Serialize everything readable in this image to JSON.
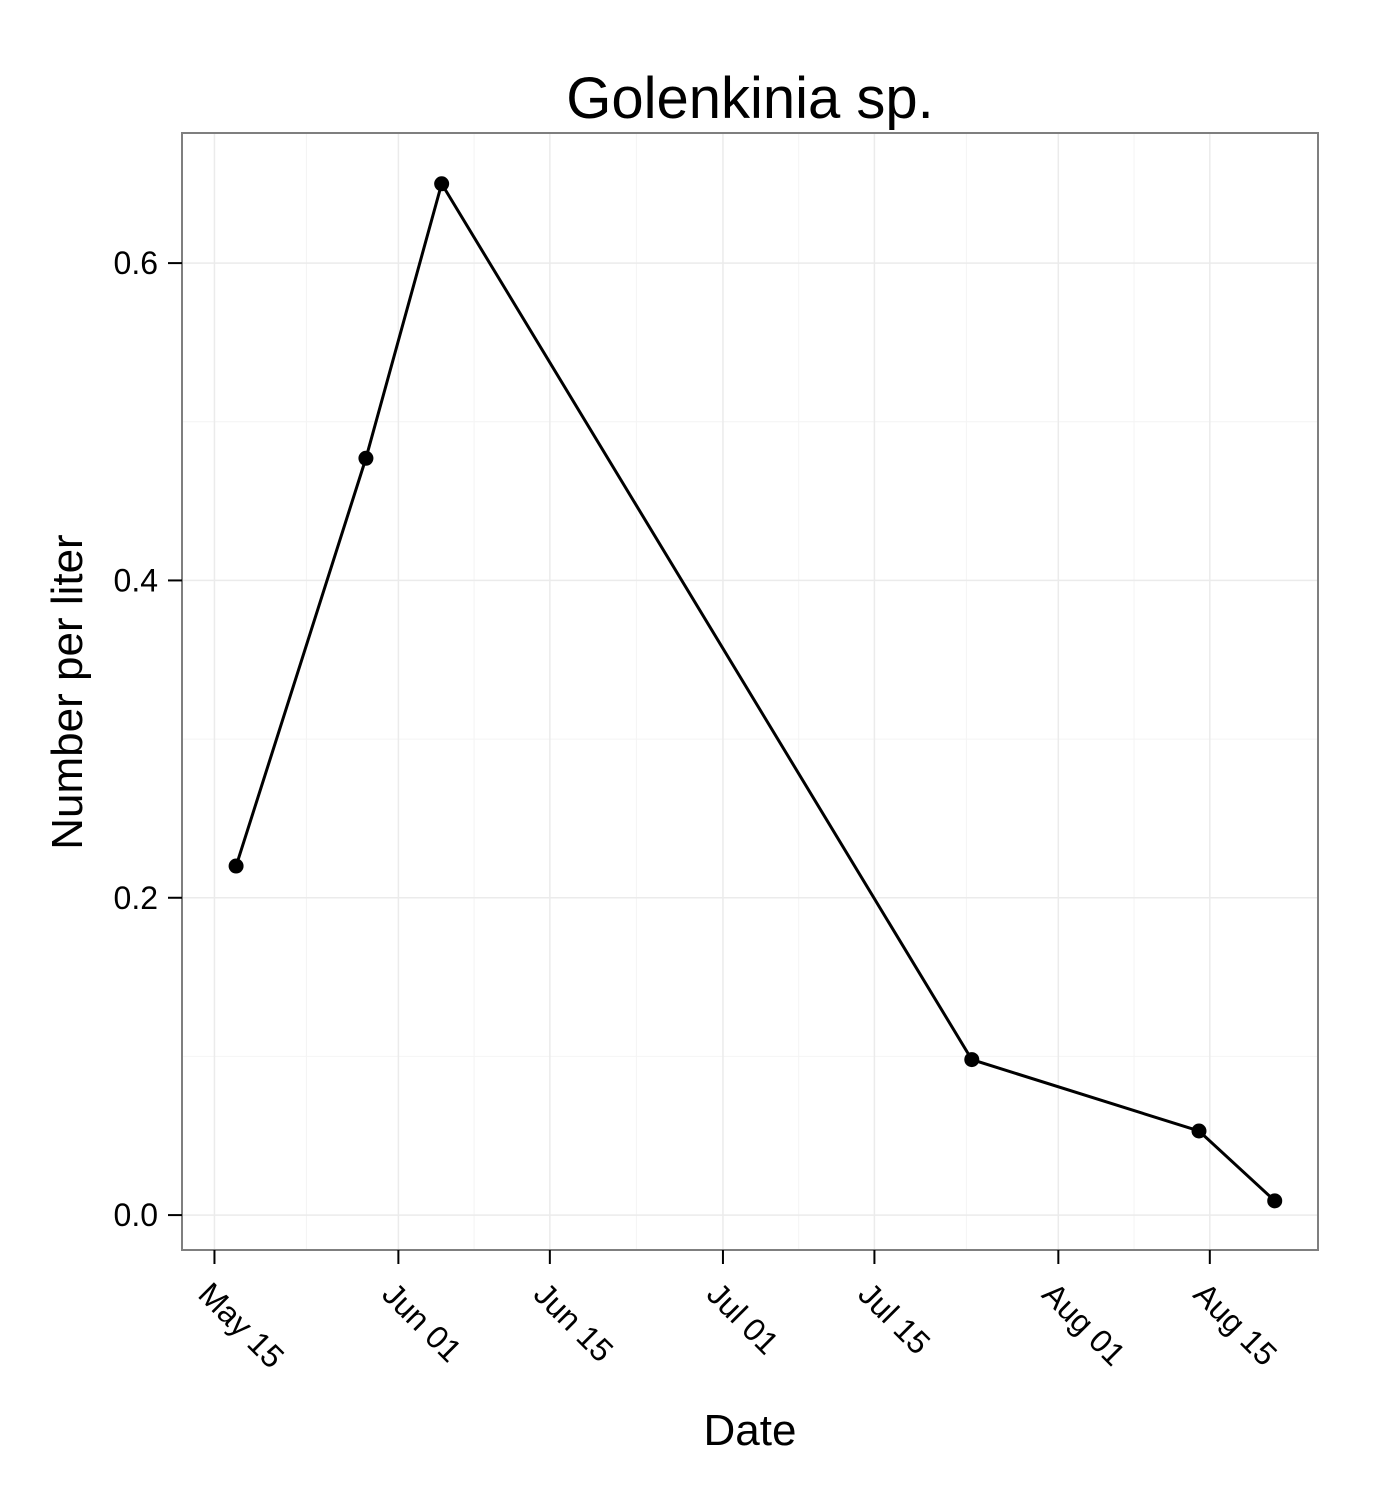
{
  "chart_data": {
    "type": "line",
    "title": "Golenkinia sp.",
    "xlabel": "Date",
    "ylabel": "Number per liter",
    "x_ticks": [
      "May 15",
      "Jun 01",
      "Jun 15",
      "Jul 01",
      "Jul 15",
      "Aug 01",
      "Aug 15"
    ],
    "y_ticks": [
      "0.0",
      "0.2",
      "0.4",
      "0.6"
    ],
    "ylim": [
      -0.022,
      0.682
    ],
    "xlim": [
      "2010-05-12",
      "2010-08-25"
    ],
    "grid": true,
    "series": [
      {
        "x": [
          "2010-05-17",
          "2010-05-29",
          "2010-06-05",
          "2010-07-24",
          "2010-08-14",
          "2010-08-21"
        ],
        "y": [
          0.22,
          0.477,
          0.65,
          0.098,
          0.053,
          0.009
        ],
        "color": "#000000"
      }
    ]
  }
}
